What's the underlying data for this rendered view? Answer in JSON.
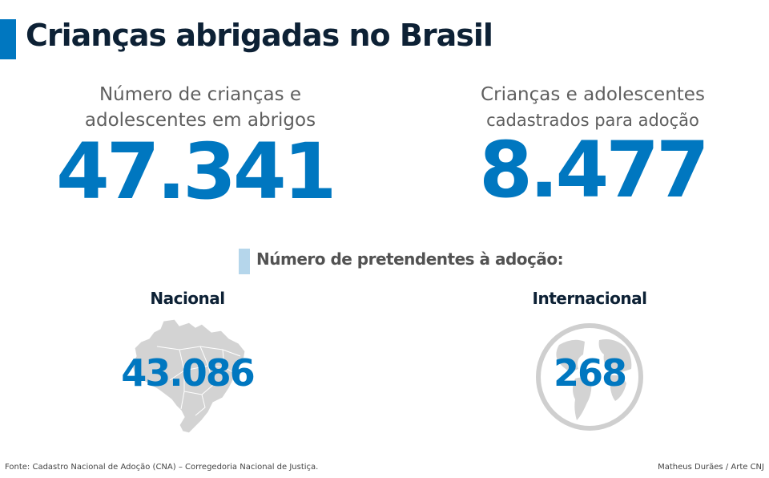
{
  "title": "Crianças abrigadas no Brasil",
  "colors": {
    "accent": "#0077c0",
    "title": "#0d2135",
    "light_accent": "#b5d6eb",
    "shape_gray": "#d3d3d3"
  },
  "stats": [
    {
      "label_line1": "Número de crianças e",
      "label_line2": "adolescentes em abrigos",
      "value": "47.341"
    },
    {
      "label_line1": "Crianças e adolescentes",
      "label_line2": "cadastrados para adoção",
      "value": "8.477"
    }
  ],
  "pretendentes": {
    "heading": "Número de pretendentes à adoção:",
    "nacional": {
      "label": "Nacional",
      "value": "43.086",
      "icon": "brazil-map-icon"
    },
    "internacional": {
      "label": "Internacional",
      "value": "268",
      "icon": "globe-icon"
    }
  },
  "footer": {
    "source": "Fonte: Cadastro Nacional de Adoção (CNA) – Corregedoria Nacional de Justiça.",
    "credit": "Matheus Durães / Arte CNJ"
  }
}
